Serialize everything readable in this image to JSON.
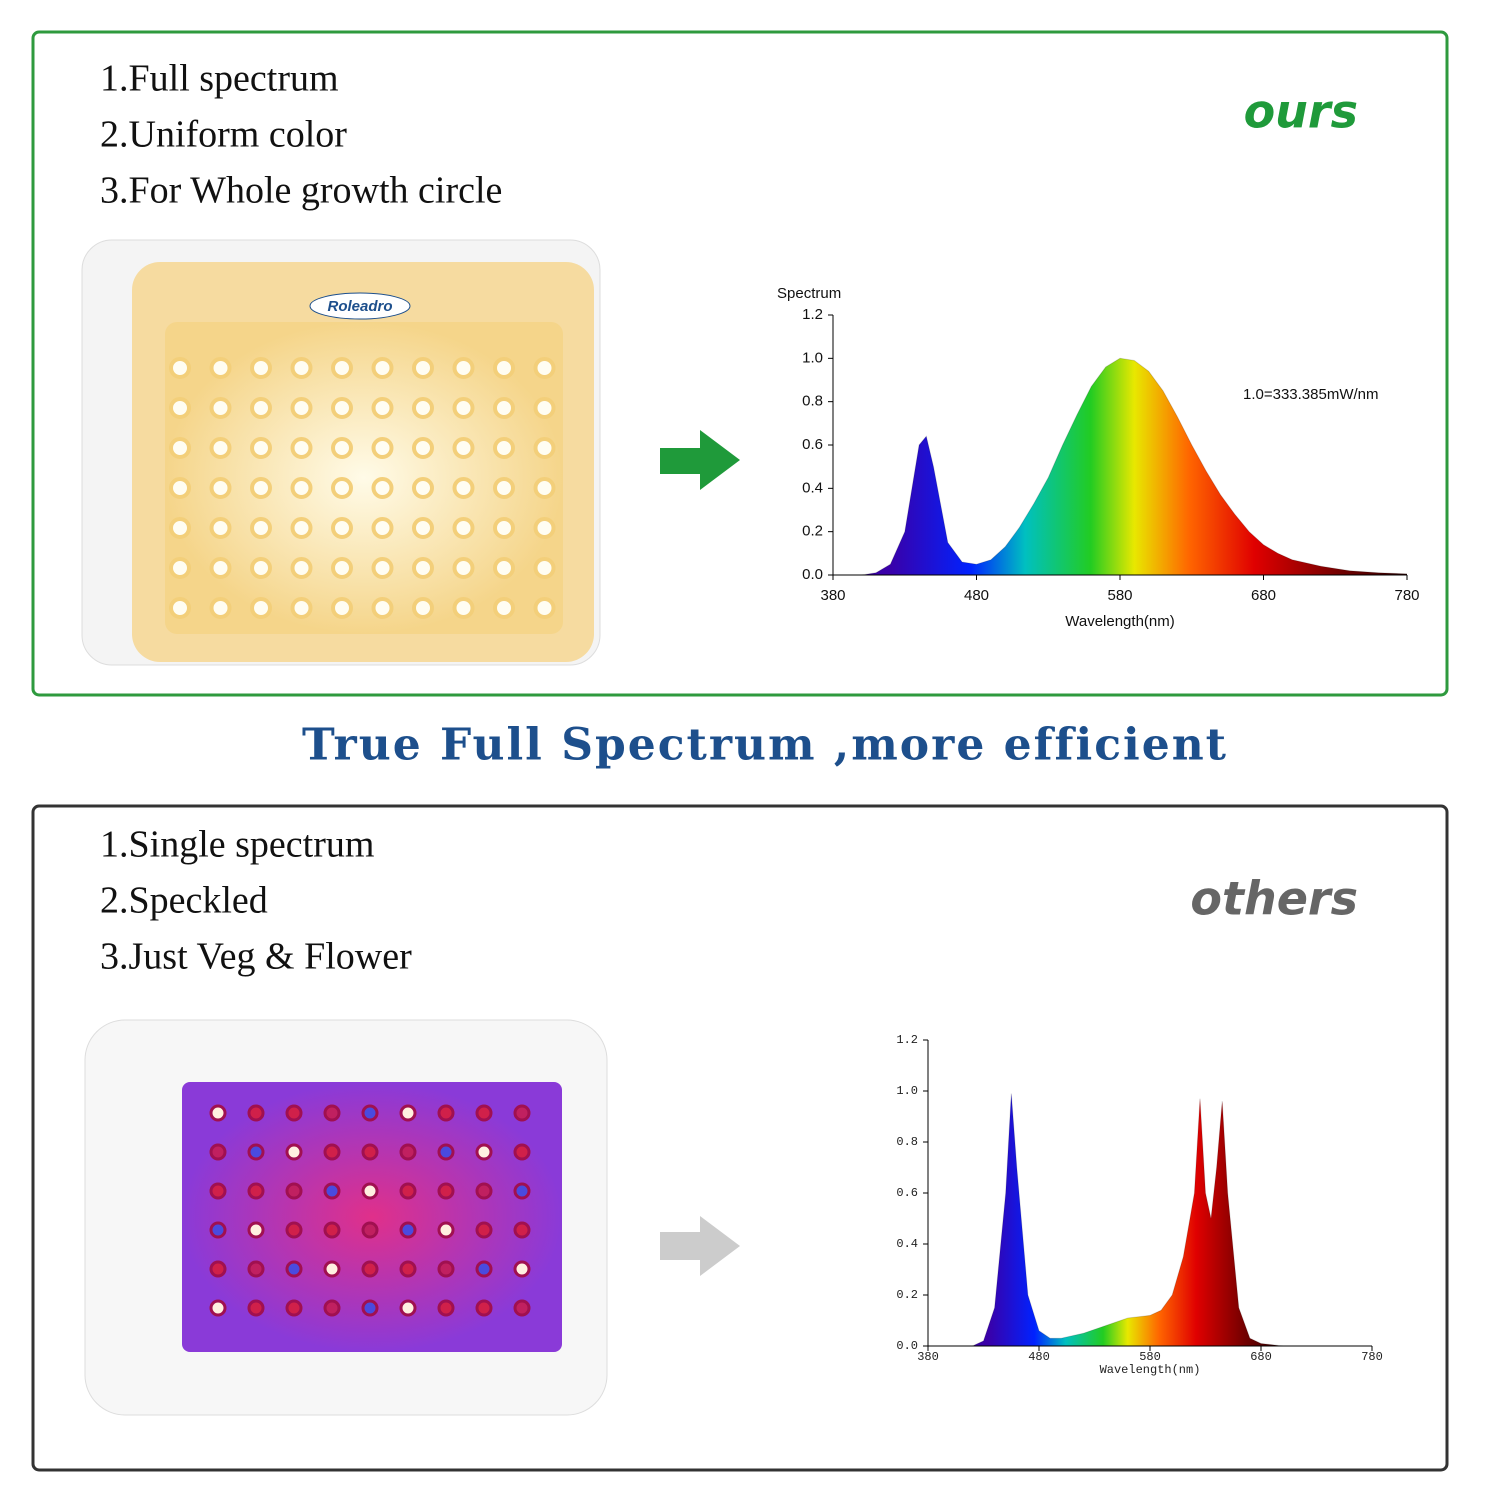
{
  "top": {
    "features": [
      "1.Full spectrum",
      "2.Uniform color",
      "3.For Whole growth circle"
    ],
    "label": "ours",
    "brand": "Roleadro"
  },
  "headline": "True Full Spectrum ,more efficient",
  "bottom": {
    "features": [
      "1.Single spectrum",
      "2.Speckled",
      "3.Just Veg & Flower"
    ],
    "label": "others"
  },
  "chart_data": [
    {
      "type": "area",
      "ylabel": "Spectrum",
      "xlabel": "Wavelength(nm)",
      "annotation": "1.0=333.385mW/nm",
      "x": [
        400,
        410,
        420,
        430,
        440,
        445,
        450,
        460,
        470,
        480,
        490,
        500,
        510,
        520,
        530,
        540,
        550,
        560,
        570,
        580,
        590,
        600,
        610,
        620,
        630,
        640,
        650,
        660,
        670,
        680,
        690,
        700,
        720,
        740,
        760,
        780
      ],
      "values": [
        0,
        0.01,
        0.05,
        0.2,
        0.6,
        0.64,
        0.5,
        0.15,
        0.06,
        0.05,
        0.07,
        0.13,
        0.22,
        0.33,
        0.45,
        0.6,
        0.74,
        0.87,
        0.96,
        1.0,
        0.99,
        0.94,
        0.85,
        0.73,
        0.6,
        0.48,
        0.37,
        0.28,
        0.2,
        0.14,
        0.1,
        0.07,
        0.04,
        0.02,
        0.01,
        0.005
      ],
      "xlim": [
        380,
        780
      ],
      "xticks": [
        380,
        480,
        580,
        680,
        780
      ],
      "ylim": [
        0,
        1.2
      ],
      "yticks": [
        {
          "value": 0,
          "label": "0.0"
        },
        0.2,
        0.4,
        0.6,
        0.8,
        {
          "value": 1,
          "label": "1.0"
        },
        1.2
      ]
    },
    {
      "type": "area",
      "xlabel": "Wavelength(nm)",
      "x": [
        420,
        430,
        440,
        450,
        455,
        460,
        470,
        480,
        490,
        500,
        520,
        540,
        560,
        580,
        590,
        600,
        610,
        620,
        625,
        630,
        635,
        640,
        645,
        650,
        660,
        670,
        680,
        700
      ],
      "values": [
        0,
        0.02,
        0.15,
        0.6,
        0.99,
        0.7,
        0.2,
        0.06,
        0.03,
        0.03,
        0.05,
        0.08,
        0.11,
        0.12,
        0.14,
        0.2,
        0.35,
        0.6,
        0.97,
        0.6,
        0.5,
        0.7,
        0.96,
        0.6,
        0.15,
        0.03,
        0.01,
        0
      ],
      "xlim": [
        380,
        780
      ],
      "xticks": [
        380,
        480,
        580,
        680,
        780
      ],
      "ylim": [
        0,
        1.2
      ],
      "yticks": [
        {
          "value": 0,
          "label": "0.0"
        },
        0.2,
        0.4,
        0.6,
        0.8,
        {
          "value": 1,
          "label": "1.0"
        },
        1.2
      ]
    }
  ]
}
